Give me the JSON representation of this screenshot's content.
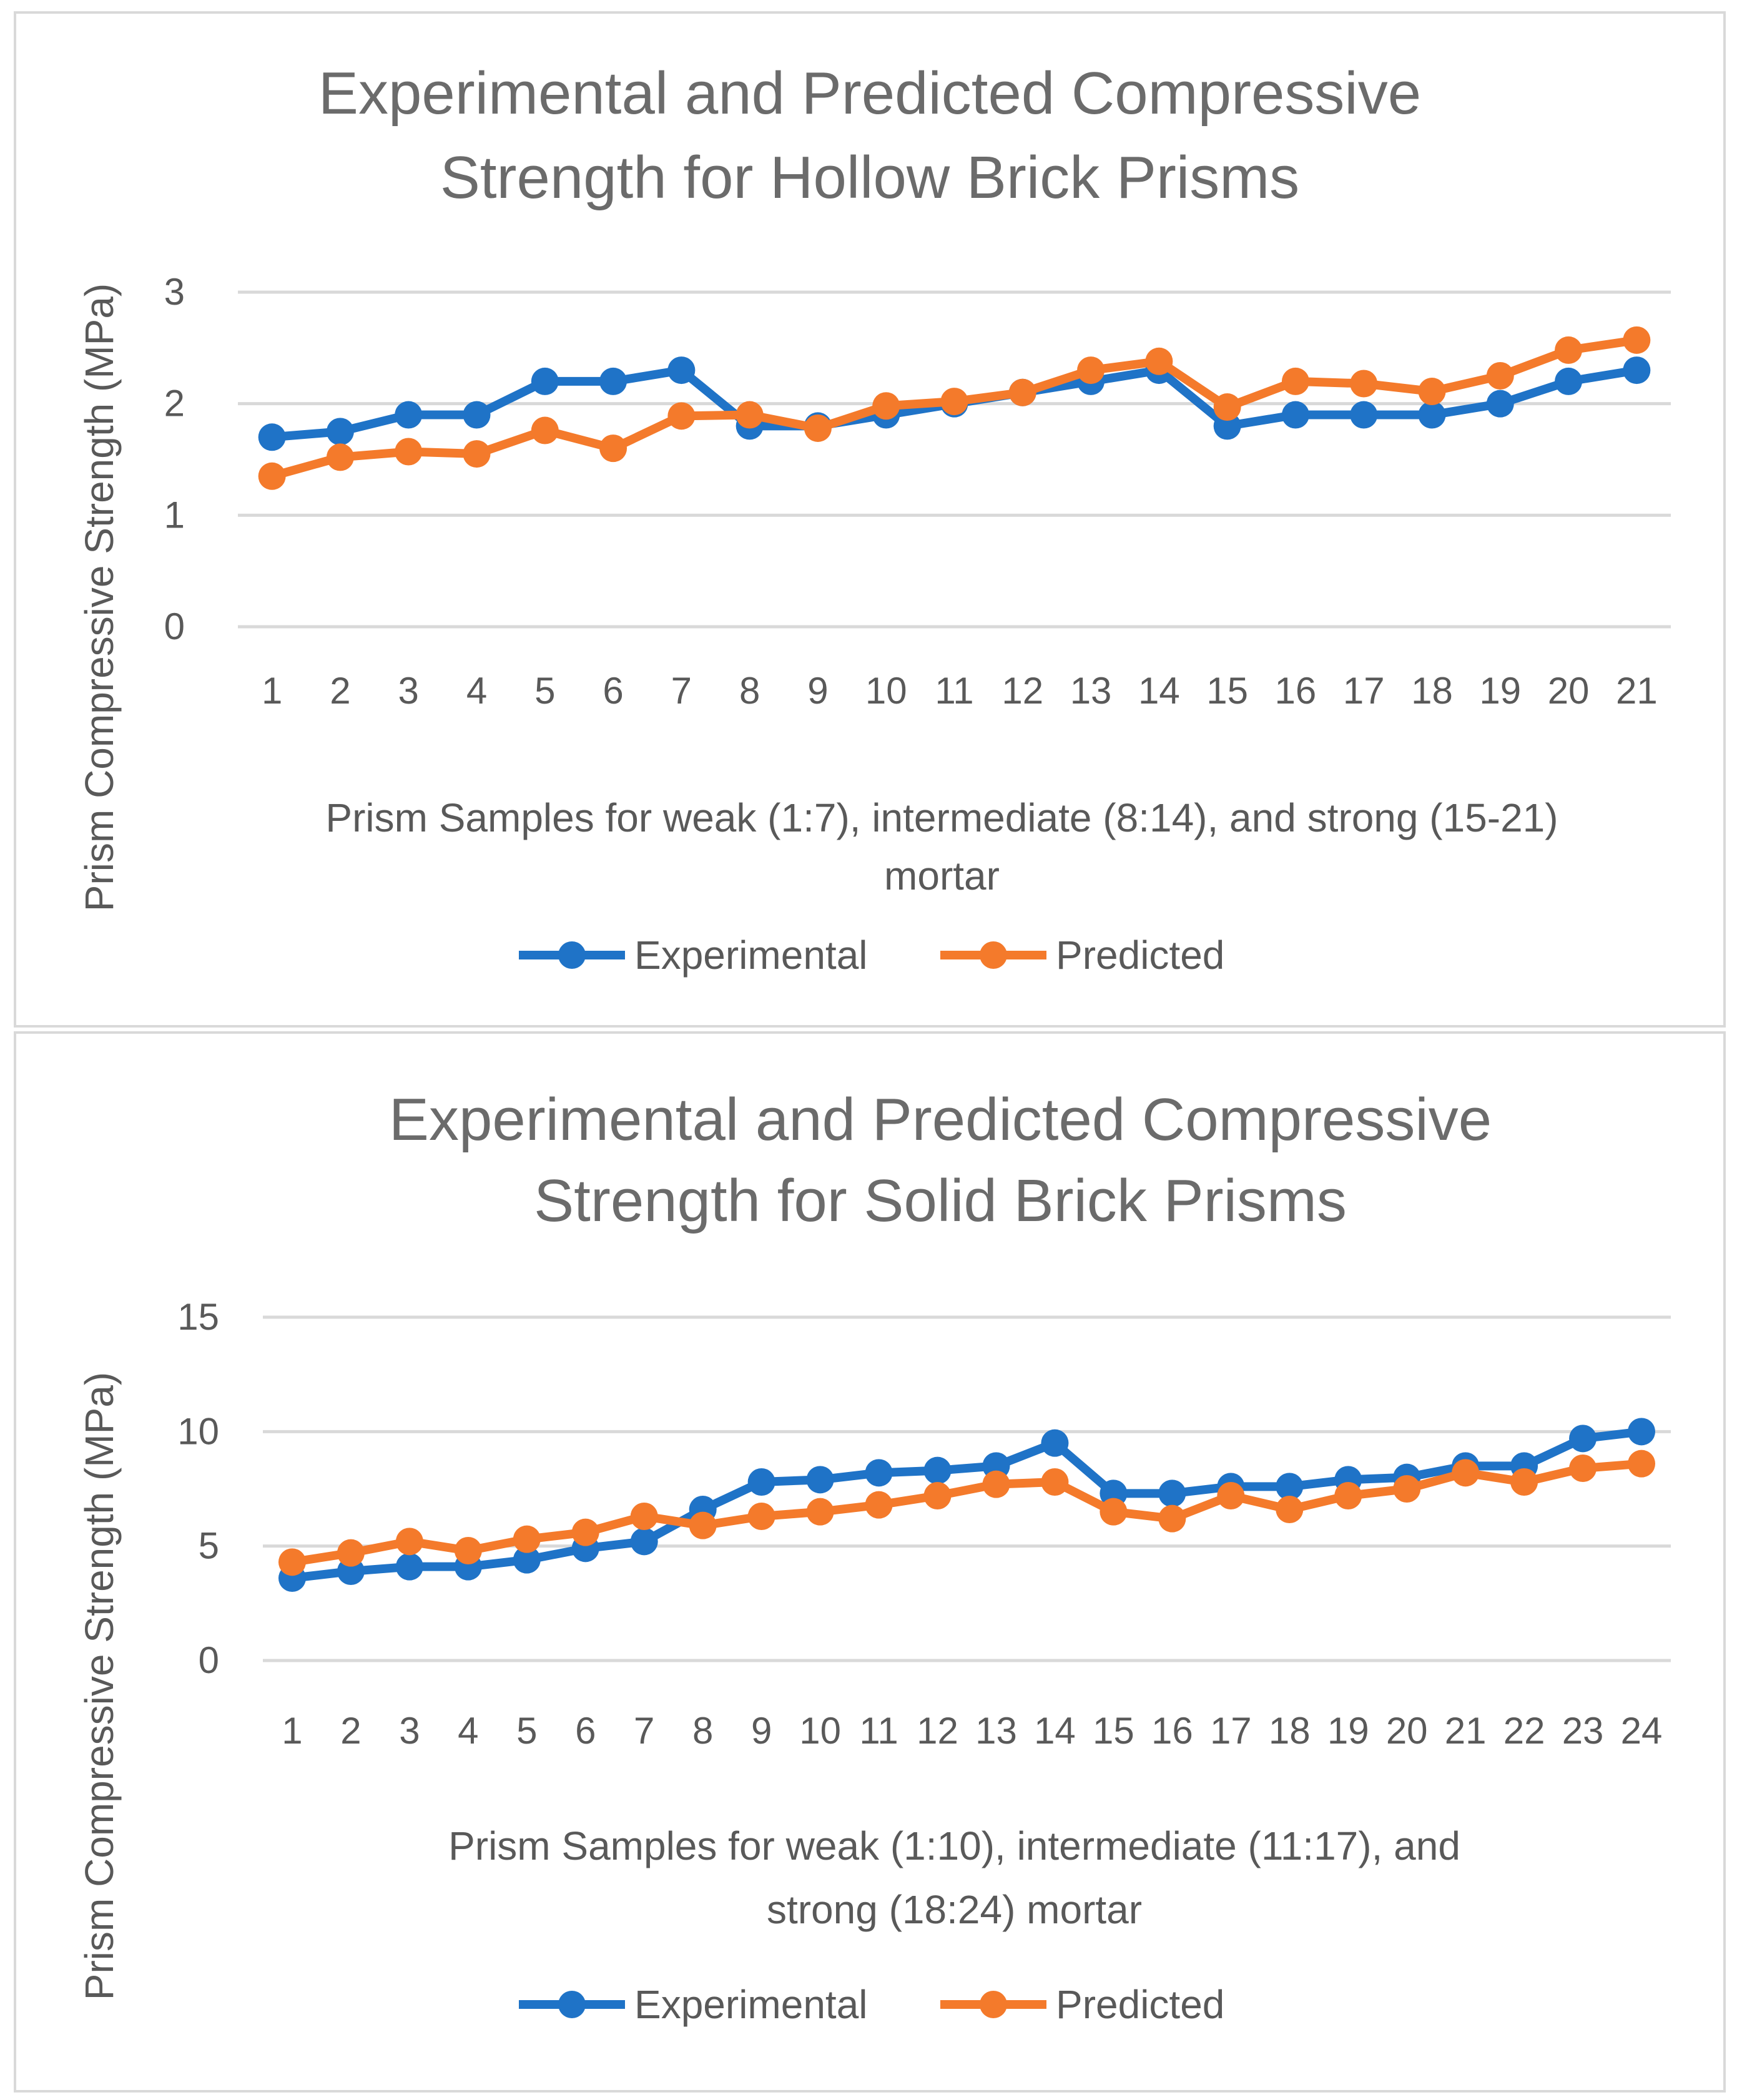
{
  "colors": {
    "experimental": "#1f73c7",
    "predicted": "#f47a2b",
    "grid": "#d9d9d9",
    "text": "#595959",
    "title": "#6b6b6b"
  },
  "chart_data": [
    {
      "type": "line",
      "title_lines": [
        "Experimental and Predicted Compressive",
        "Strength for Hollow Brick Prisms"
      ],
      "xlabel_lines": [
        "Prism Samples for weak (1:7), intermediate (8:14), and strong (15-21)",
        "mortar"
      ],
      "ylabel": "Prism Compressive Strength (MPa)",
      "categories": [
        "1",
        "2",
        "3",
        "4",
        "5",
        "6",
        "7",
        "8",
        "9",
        "10",
        "11",
        "12",
        "13",
        "14",
        "15",
        "16",
        "17",
        "18",
        "19",
        "20",
        "21"
      ],
      "yticks": [
        "0",
        "1",
        "2",
        "3"
      ],
      "ylim": [
        0,
        3
      ],
      "legend_position": "bottom",
      "series": [
        {
          "name": "Experimental",
          "values": [
            1.7,
            1.75,
            1.9,
            1.9,
            2.2,
            2.2,
            2.3,
            1.8,
            1.8,
            1.9,
            2.0,
            2.1,
            2.2,
            2.3,
            1.8,
            1.9,
            1.9,
            1.9,
            2.0,
            2.2,
            2.3
          ]
        },
        {
          "name": "Predicted",
          "values": [
            1.35,
            1.52,
            1.57,
            1.55,
            1.76,
            1.6,
            1.89,
            1.9,
            1.78,
            1.98,
            2.02,
            2.1,
            2.3,
            2.38,
            1.97,
            2.2,
            2.18,
            2.11,
            2.25,
            2.48,
            2.57
          ]
        }
      ]
    },
    {
      "type": "line",
      "title_lines": [
        "Experimental and Predicted Compressive",
        "Strength for Solid Brick Prisms"
      ],
      "xlabel_lines": [
        "Prism Samples for weak (1:10), intermediate (11:17), and",
        "strong (18:24) mortar"
      ],
      "ylabel": "Prism Compressive Strength (MPa)",
      "categories": [
        "1",
        "2",
        "3",
        "4",
        "5",
        "6",
        "7",
        "8",
        "9",
        "10",
        "11",
        "12",
        "13",
        "14",
        "15",
        "16",
        "17",
        "18",
        "19",
        "20",
        "21",
        "22",
        "23",
        "24"
      ],
      "yticks": [
        "0",
        "5",
        "10",
        "15"
      ],
      "ylim": [
        0,
        15
      ],
      "legend_position": "bottom",
      "series": [
        {
          "name": "Experimental",
          "values": [
            3.6,
            3.9,
            4.1,
            4.1,
            4.4,
            4.9,
            5.2,
            6.6,
            7.8,
            7.9,
            8.2,
            8.3,
            8.5,
            9.5,
            7.3,
            7.3,
            7.6,
            7.6,
            7.9,
            8.0,
            8.5,
            8.5,
            9.7,
            10.0
          ]
        },
        {
          "name": "Predicted",
          "values": [
            4.3,
            4.7,
            5.2,
            4.8,
            5.3,
            5.6,
            6.3,
            5.9,
            6.3,
            6.5,
            6.8,
            7.2,
            7.7,
            7.8,
            6.5,
            6.2,
            7.2,
            6.6,
            7.2,
            7.5,
            8.2,
            7.8,
            8.4,
            8.6
          ]
        }
      ]
    }
  ]
}
